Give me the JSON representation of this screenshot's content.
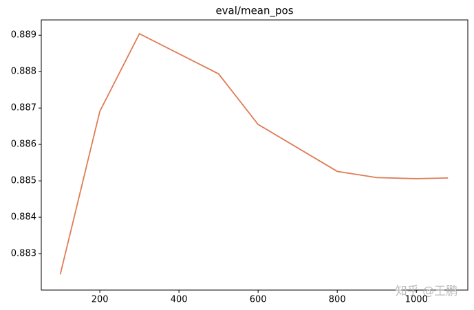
{
  "chart_data": {
    "type": "line",
    "title": "eval/mean_pos",
    "x": [
      100,
      200,
      300,
      500,
      600,
      800,
      900,
      1000,
      1080
    ],
    "values": [
      0.88243,
      0.88691,
      0.88904,
      0.88794,
      0.88655,
      0.88526,
      0.88509,
      0.88506,
      0.88508
    ],
    "color": "#e07b54",
    "xlim": [
      52,
      1130
    ],
    "ylim": [
      0.882,
      0.88942
    ],
    "xticks": [
      200,
      400,
      600,
      800,
      1000
    ],
    "yticks": [
      0.883,
      0.884,
      0.885,
      0.886,
      0.887,
      0.888,
      0.889
    ],
    "grid": false,
    "watermark": "知乎 @王鹏"
  }
}
